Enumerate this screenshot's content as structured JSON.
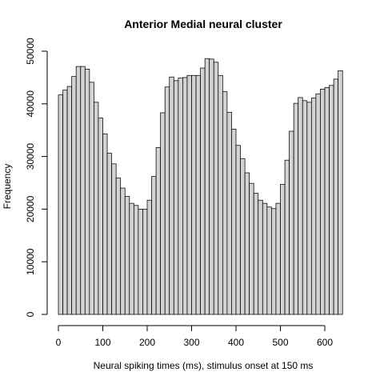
{
  "chart_data": {
    "type": "bar",
    "title": "Anterior Medial neural cluster",
    "xlabel": "Neural spiking times (ms), stimulus onset at 150 ms",
    "ylabel": "Frequency",
    "bin_width": 10,
    "bin_start": 0,
    "xlim": [
      0,
      650
    ],
    "ylim": [
      0,
      50000
    ],
    "x_ticks": [
      0,
      100,
      200,
      300,
      400,
      500,
      600
    ],
    "y_ticks": [
      0,
      10000,
      20000,
      30000,
      40000,
      50000
    ],
    "grid": false,
    "bar_fill": "#d3d3d3",
    "bar_stroke": "#000000",
    "values": [
      41700,
      42600,
      43300,
      45200,
      47100,
      47100,
      46600,
      44100,
      40300,
      37300,
      34300,
      30600,
      28600,
      25900,
      24000,
      22400,
      21100,
      20700,
      20000,
      20000,
      21700,
      26200,
      31700,
      38300,
      43200,
      45100,
      44400,
      44900,
      45000,
      45400,
      45400,
      45400,
      46800,
      48600,
      48500,
      47900,
      45400,
      42300,
      38400,
      35200,
      32100,
      29600,
      26900,
      24900,
      23000,
      21700,
      21100,
      20400,
      20100,
      21100,
      24700,
      29300,
      34800,
      40100,
      41200,
      40600,
      40300,
      41100,
      41900,
      42800,
      43100,
      43500,
      44700,
      46300
    ]
  }
}
